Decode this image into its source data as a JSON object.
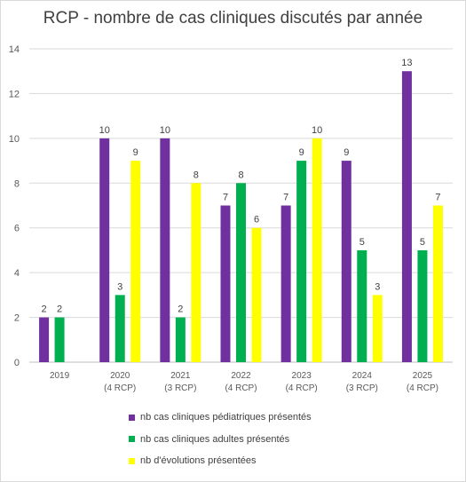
{
  "chart_data": {
    "type": "bar",
    "title": "RCP - nombre de cas cliniques discutés par année",
    "categories": [
      {
        "year": "2019",
        "sub": ""
      },
      {
        "year": "2020",
        "sub": "(4 RCP)"
      },
      {
        "year": "2021",
        "sub": "(3 RCP)"
      },
      {
        "year": "2022",
        "sub": "(4 RCP)"
      },
      {
        "year": "2023",
        "sub": "(4 RCP)"
      },
      {
        "year": "2024",
        "sub": "(3 RCP)"
      },
      {
        "year": "2025",
        "sub": "(4 RCP)"
      }
    ],
    "series": [
      {
        "name": "nb cas cliniques pédiatriques présentés",
        "color": "#7030a0",
        "values": [
          2,
          10,
          10,
          7,
          7,
          9,
          13
        ]
      },
      {
        "name": "nb cas cliniques adultes présentés",
        "color": "#00b050",
        "values": [
          2,
          3,
          2,
          8,
          9,
          5,
          5
        ]
      },
      {
        "name": "nb d'évolutions présentées",
        "color": "#ffff00",
        "values": [
          null,
          9,
          8,
          6,
          10,
          3,
          7
        ]
      }
    ],
    "ylim": [
      0,
      14
    ],
    "yticks": [
      0,
      2,
      4,
      6,
      8,
      10,
      12,
      14
    ],
    "grid": true,
    "legend_position": "bottom",
    "data_labels": true
  }
}
